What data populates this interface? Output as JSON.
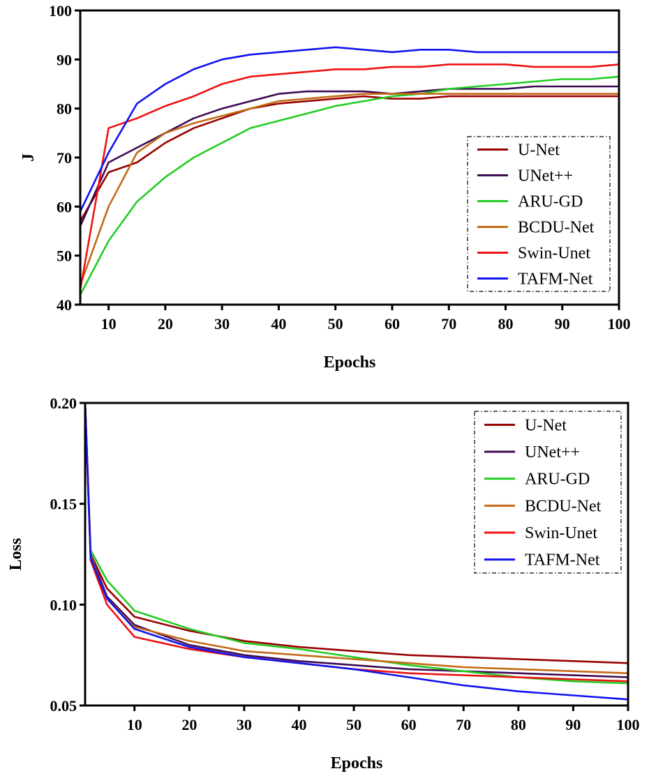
{
  "colors": {
    "U-Net": "#990000",
    "UNet++": "#3d0a52",
    "ARU-GD": "#22cc22",
    "BCDU-Net": "#c36a16",
    "Swin-Unet": "#ee1111",
    "TAFM-Net": "#1111ee"
  },
  "chart_data": [
    {
      "type": "line",
      "xlabel": "Epochs",
      "ylabel": "J",
      "xlim": [
        5,
        100
      ],
      "ylim": [
        40,
        100
      ],
      "xticks": [
        "10",
        "20",
        "30",
        "40",
        "50",
        "60",
        "70",
        "80",
        "90",
        "100"
      ],
      "yticks": [
        "40",
        "50",
        "60",
        "70",
        "80",
        "90",
        "100"
      ],
      "legend_position": "lower-right",
      "series": [
        {
          "name": "U-Net",
          "x": [
            5,
            10,
            15,
            20,
            25,
            30,
            35,
            40,
            45,
            50,
            55,
            60,
            65,
            70,
            75,
            80,
            85,
            90,
            95,
            100
          ],
          "values": [
            57,
            67,
            69,
            73,
            76,
            78,
            80,
            81,
            81.5,
            82,
            82.5,
            82,
            82,
            82.5,
            82.5,
            82.5,
            82.5,
            82.5,
            82.5,
            82.5
          ]
        },
        {
          "name": "UNet++",
          "x": [
            5,
            10,
            15,
            20,
            25,
            30,
            35,
            40,
            45,
            50,
            55,
            60,
            65,
            70,
            75,
            80,
            85,
            90,
            95,
            100
          ],
          "values": [
            56,
            69,
            72,
            75,
            78,
            80,
            81.5,
            83,
            83.5,
            83.5,
            83.5,
            83,
            83.5,
            84,
            84,
            84,
            84.5,
            84.5,
            84.5,
            84.5
          ]
        },
        {
          "name": "ARU-GD",
          "x": [
            5,
            10,
            15,
            20,
            25,
            30,
            35,
            40,
            45,
            50,
            55,
            60,
            65,
            70,
            75,
            80,
            85,
            90,
            95,
            100
          ],
          "values": [
            42,
            53,
            61,
            66,
            70,
            73,
            76,
            77.5,
            79,
            80.5,
            81.5,
            82.5,
            83,
            84,
            84.5,
            85,
            85.5,
            86,
            86,
            86.5
          ]
        },
        {
          "name": "BCDU-Net",
          "x": [
            5,
            10,
            15,
            20,
            25,
            30,
            35,
            40,
            45,
            50,
            55,
            60,
            65,
            70,
            75,
            80,
            85,
            90,
            95,
            100
          ],
          "values": [
            44,
            60,
            71,
            75,
            77,
            78.5,
            80,
            81.5,
            82,
            82.5,
            83,
            83,
            83,
            83,
            83,
            83,
            83,
            83,
            83,
            83
          ]
        },
        {
          "name": "Swin-Unet",
          "x": [
            5,
            10,
            15,
            20,
            25,
            30,
            35,
            40,
            45,
            50,
            55,
            60,
            65,
            70,
            75,
            80,
            85,
            90,
            95,
            100
          ],
          "values": [
            43,
            76,
            78,
            80.5,
            82.5,
            85,
            86.5,
            87,
            87.5,
            88,
            88,
            88.5,
            88.5,
            89,
            89,
            89,
            88.5,
            88.5,
            88.5,
            89
          ]
        },
        {
          "name": "TAFM-Net",
          "x": [
            5,
            10,
            15,
            20,
            25,
            30,
            35,
            40,
            45,
            50,
            55,
            60,
            65,
            70,
            75,
            80,
            85,
            90,
            95,
            100
          ],
          "values": [
            59,
            71,
            81,
            85,
            88,
            90,
            91,
            91.5,
            92,
            92.5,
            92,
            91.5,
            92,
            92,
            91.5,
            91.5,
            91.5,
            91.5,
            91.5,
            91.5
          ]
        }
      ]
    },
    {
      "type": "line",
      "xlabel": "Epochs",
      "ylabel": "Loss",
      "xlim": [
        1,
        100
      ],
      "ylim": [
        0.05,
        0.2
      ],
      "xticks": [
        "10",
        "20",
        "30",
        "40",
        "50",
        "60",
        "70",
        "80",
        "90",
        "100"
      ],
      "yticks": [
        "0.05",
        "0.10",
        "0.15",
        "0.20"
      ],
      "legend_position": "top-right",
      "series": [
        {
          "name": "U-Net",
          "x": [
            1,
            2,
            5,
            10,
            20,
            30,
            40,
            50,
            60,
            70,
            80,
            90,
            100
          ],
          "values": [
            0.2,
            0.125,
            0.108,
            0.094,
            0.087,
            0.082,
            0.079,
            0.077,
            0.075,
            0.074,
            0.073,
            0.072,
            0.071
          ]
        },
        {
          "name": "UNet++",
          "x": [
            1,
            2,
            5,
            10,
            20,
            30,
            40,
            50,
            60,
            70,
            80,
            90,
            100
          ],
          "values": [
            0.2,
            0.125,
            0.104,
            0.09,
            0.08,
            0.075,
            0.072,
            0.07,
            0.068,
            0.067,
            0.066,
            0.065,
            0.064
          ]
        },
        {
          "name": "ARU-GD",
          "x": [
            1,
            2,
            5,
            10,
            20,
            30,
            40,
            50,
            60,
            70,
            80,
            90,
            100
          ],
          "values": [
            0.2,
            0.127,
            0.112,
            0.097,
            0.088,
            0.081,
            0.078,
            0.074,
            0.07,
            0.067,
            0.064,
            0.062,
            0.061
          ]
        },
        {
          "name": "BCDU-Net",
          "x": [
            1,
            2,
            5,
            10,
            20,
            30,
            40,
            50,
            60,
            70,
            80,
            90,
            100
          ],
          "values": [
            0.2,
            0.124,
            0.103,
            0.089,
            0.082,
            0.077,
            0.075,
            0.073,
            0.071,
            0.069,
            0.068,
            0.067,
            0.066
          ]
        },
        {
          "name": "Swin-Unet",
          "x": [
            1,
            2,
            5,
            10,
            20,
            30,
            40,
            50,
            60,
            70,
            80,
            90,
            100
          ],
          "values": [
            0.2,
            0.122,
            0.1,
            0.084,
            0.078,
            0.074,
            0.071,
            0.068,
            0.066,
            0.065,
            0.064,
            0.063,
            0.062
          ]
        },
        {
          "name": "TAFM-Net",
          "x": [
            1,
            2,
            5,
            10,
            20,
            30,
            40,
            50,
            60,
            70,
            80,
            90,
            100
          ],
          "values": [
            0.2,
            0.123,
            0.103,
            0.088,
            0.079,
            0.074,
            0.071,
            0.068,
            0.064,
            0.06,
            0.057,
            0.055,
            0.053
          ]
        }
      ]
    }
  ]
}
